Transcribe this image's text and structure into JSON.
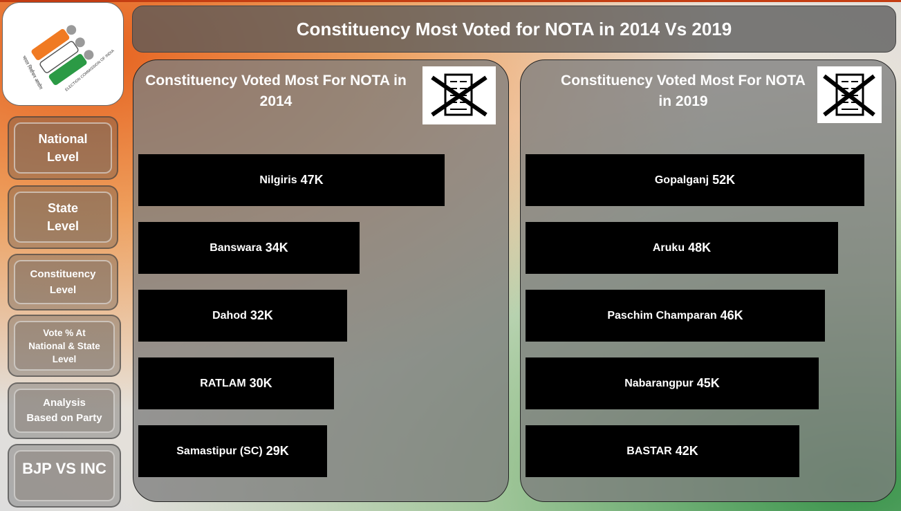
{
  "title": "Constituency Most Voted for NOTA in 2014 Vs 2019",
  "logo": {
    "text_hindi": "भारत निर्वाचन आयोग",
    "text_english": "ELECTION COMMISSION OF INDIA",
    "colors": {
      "saffron": "#f07a22",
      "green": "#2b9a45",
      "gray": "#9a9a9a"
    }
  },
  "nav": [
    {
      "label": "National\nLevel"
    },
    {
      "label": "State\nLevel"
    },
    {
      "label": "Constituency\nLevel"
    },
    {
      "label": "Vote % At\nNational & State\nLevel"
    },
    {
      "label": "Analysis\nBased on Party"
    },
    {
      "label": "BJP VS INC"
    }
  ],
  "panels": [
    {
      "title": "Constituency Voted Most For NOTA in\n2014",
      "icon": "nota-ballot-cross-icon"
    },
    {
      "title": "Constituency Voted Most For NOTA\nin 2019",
      "icon": "nota-ballot-cross-icon"
    }
  ],
  "chart_data": [
    {
      "type": "bar",
      "orientation": "horizontal",
      "title": "Constituency Voted Most For NOTA in 2014",
      "categories": [
        "Nilgiris",
        "Banswara",
        "Dahod",
        "RATLAM",
        "Samastipur (SC)"
      ],
      "values": [
        47,
        34,
        32,
        30,
        29
      ],
      "value_labels": [
        "47K",
        "34K",
        "32K",
        "30K",
        "29K"
      ],
      "units": "K",
      "xlim": [
        0,
        52
      ],
      "bar_color": "#000000",
      "grid": false
    },
    {
      "type": "bar",
      "orientation": "horizontal",
      "title": "Constituency Voted Most For NOTA in 2019",
      "categories": [
        "Gopalganj",
        "Aruku",
        "Paschim Champaran",
        "Nabarangpur",
        "BASTAR"
      ],
      "values": [
        52,
        48,
        46,
        45,
        42
      ],
      "value_labels": [
        "52K",
        "48K",
        "46K",
        "45K",
        "42K"
      ],
      "units": "K",
      "xlim": [
        0,
        52
      ],
      "bar_color": "#000000",
      "grid": false
    }
  ]
}
